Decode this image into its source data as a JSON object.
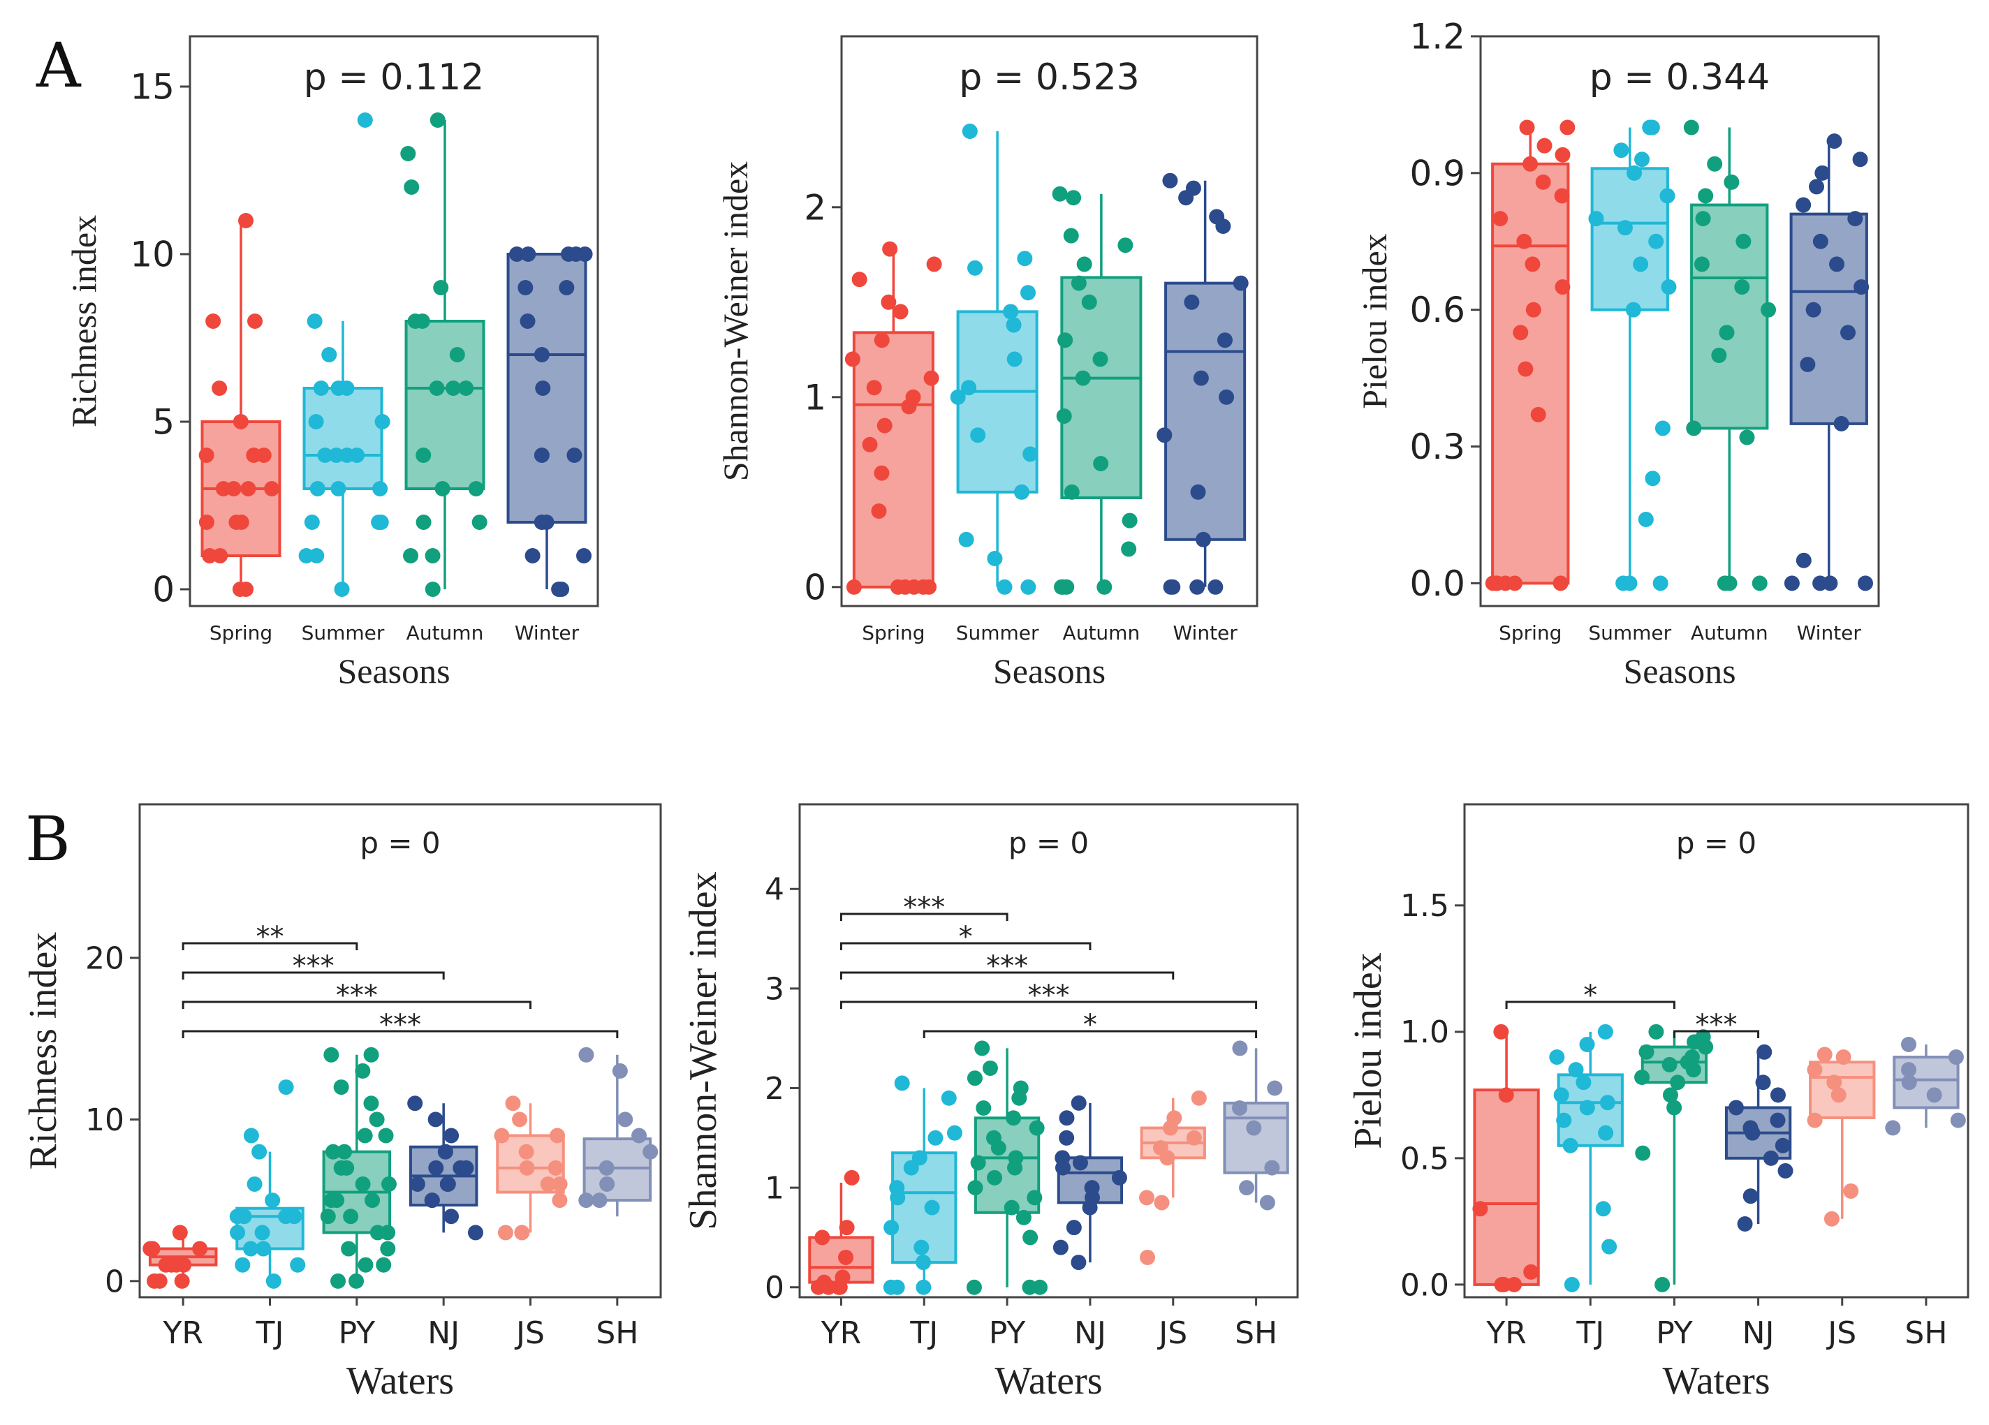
{
  "figure": {
    "panel_labels": [
      "A",
      "B"
    ],
    "colors": {
      "Spring": "#F0473C",
      "Summer": "#1FB8D6",
      "Autumn": "#11A07E",
      "Winter": "#2B4B8C",
      "YR": "#F0473C",
      "TJ": "#1FB8D6",
      "PY": "#11A07E",
      "NJ": "#2B4B8C",
      "JS": "#F6907E",
      "SH": "#8290B8"
    }
  },
  "chart_data": [
    {
      "type": "box",
      "panel": "A",
      "title": "p = 0.112",
      "xlabel": "Seasons",
      "ylabel": "Richness index",
      "ylim": [
        -0.5,
        16.5
      ],
      "yticks": [
        0,
        5,
        10,
        15
      ],
      "ytick_labels": [
        "0",
        "5",
        "10",
        "15"
      ],
      "categories": [
        "Spring",
        "Summer",
        "Autumn",
        "Winter"
      ],
      "boxes": [
        {
          "q1": 1,
          "median": 3,
          "q3": 5,
          "whisker_low": 0,
          "whisker_high": 11
        },
        {
          "q1": 3,
          "median": 4,
          "q3": 6,
          "whisker_low": 0,
          "whisker_high": 8
        },
        {
          "q1": 3,
          "median": 6,
          "q3": 8,
          "whisker_low": 0,
          "whisker_high": 14
        },
        {
          "q1": 2,
          "median": 7,
          "q3": 10,
          "whisker_low": 0,
          "whisker_high": 10
        }
      ],
      "points": [
        [
          0,
          0,
          1,
          1,
          2,
          2,
          2,
          3,
          3,
          3,
          3,
          4,
          4,
          4,
          5,
          6,
          8,
          8,
          11
        ],
        [
          0,
          1,
          1,
          2,
          2,
          2,
          3,
          3,
          3,
          4,
          4,
          4,
          4,
          5,
          5,
          6,
          6,
          6,
          7,
          8,
          14
        ],
        [
          0,
          1,
          1,
          2,
          2,
          3,
          3,
          4,
          6,
          6,
          6,
          7,
          8,
          8,
          9,
          12,
          13,
          14
        ],
        [
          0,
          0,
          1,
          1,
          2,
          2,
          4,
          4,
          6,
          7,
          8,
          9,
          9,
          10,
          10,
          10,
          10,
          10
        ]
      ],
      "significance": []
    },
    {
      "type": "box",
      "panel": "A",
      "title": "p = 0.523",
      "xlabel": "Seasons",
      "ylabel": "Shannon-Weiner index",
      "ylim": [
        -0.1,
        2.9
      ],
      "yticks": [
        0,
        1,
        2
      ],
      "ytick_labels": [
        "0",
        "1",
        "2"
      ],
      "categories": [
        "Spring",
        "Summer",
        "Autumn",
        "Winter"
      ],
      "boxes": [
        {
          "q1": 0,
          "median": 0.96,
          "q3": 1.34,
          "whisker_low": 0,
          "whisker_high": 1.78
        },
        {
          "q1": 0.5,
          "median": 1.03,
          "q3": 1.45,
          "whisker_low": 0,
          "whisker_high": 2.4
        },
        {
          "q1": 0.47,
          "median": 1.1,
          "q3": 1.63,
          "whisker_low": 0,
          "whisker_high": 2.07
        },
        {
          "q1": 0.25,
          "median": 1.24,
          "q3": 1.6,
          "whisker_low": 0,
          "whisker_high": 2.14
        }
      ],
      "points": [
        [
          0,
          0,
          0,
          0,
          0,
          0,
          0.4,
          0.6,
          0.75,
          0.85,
          0.95,
          1.0,
          1.05,
          1.1,
          1.2,
          1.3,
          1.45,
          1.5,
          1.62,
          1.7,
          1.78
        ],
        [
          0,
          0,
          0.15,
          0.25,
          0.5,
          0.7,
          0.8,
          1.0,
          1.05,
          1.2,
          1.38,
          1.45,
          1.55,
          1.68,
          1.73,
          2.4
        ],
        [
          0,
          0,
          0,
          0,
          0.2,
          0.35,
          0.5,
          0.65,
          0.9,
          1.1,
          1.2,
          1.3,
          1.5,
          1.6,
          1.7,
          1.8,
          1.85,
          2.05,
          2.07
        ],
        [
          0,
          0,
          0,
          0,
          0.25,
          0.5,
          0.8,
          1.0,
          1.1,
          1.3,
          1.5,
          1.6,
          1.9,
          1.95,
          2.05,
          2.1,
          2.14
        ]
      ],
      "significance": []
    },
    {
      "type": "box",
      "panel": "A",
      "title": "p = 0.344",
      "xlabel": "Seasons",
      "ylabel": "Pielou index",
      "ylim": [
        -0.05,
        1.2
      ],
      "yticks": [
        0,
        0.3,
        0.6,
        0.9,
        1.2
      ],
      "ytick_labels": [
        "0.0",
        "0.3",
        "0.6",
        "0.9",
        "1.2"
      ],
      "categories": [
        "Spring",
        "Summer",
        "Autumn",
        "Winter"
      ],
      "boxes": [
        {
          "q1": 0,
          "median": 0.74,
          "q3": 0.92,
          "whisker_low": 0,
          "whisker_high": 1.0
        },
        {
          "q1": 0.6,
          "median": 0.79,
          "q3": 0.91,
          "whisker_low": 0,
          "whisker_high": 1.0
        },
        {
          "q1": 0.34,
          "median": 0.67,
          "q3": 0.83,
          "whisker_low": 0,
          "whisker_high": 1.0
        },
        {
          "q1": 0.35,
          "median": 0.64,
          "q3": 0.81,
          "whisker_low": 0,
          "whisker_high": 0.97
        }
      ],
      "points": [
        [
          0,
          0,
          0,
          0,
          0,
          0,
          0.37,
          0.47,
          0.55,
          0.6,
          0.65,
          0.7,
          0.75,
          0.8,
          0.85,
          0.88,
          0.92,
          0.94,
          0.96,
          1.0,
          1.0
        ],
        [
          0,
          0,
          0,
          0.14,
          0.23,
          0.34,
          0.6,
          0.65,
          0.7,
          0.75,
          0.78,
          0.8,
          0.85,
          0.9,
          0.93,
          0.95,
          1.0,
          1.0
        ],
        [
          0,
          0,
          0,
          0.32,
          0.34,
          0.5,
          0.55,
          0.6,
          0.65,
          0.7,
          0.75,
          0.8,
          0.85,
          0.88,
          0.92,
          1.0
        ],
        [
          0,
          0,
          0,
          0,
          0.05,
          0.35,
          0.48,
          0.55,
          0.6,
          0.65,
          0.7,
          0.75,
          0.8,
          0.83,
          0.87,
          0.9,
          0.93,
          0.97
        ]
      ],
      "significance": []
    },
    {
      "type": "box",
      "panel": "B",
      "title": "p = 0",
      "xlabel": "Waters",
      "ylabel": "Richness index",
      "ylim": [
        -1,
        29.5
      ],
      "yticks": [
        0,
        10,
        20
      ],
      "ytick_labels": [
        "0",
        "10",
        "20"
      ],
      "categories": [
        "YR",
        "TJ",
        "PY",
        "NJ",
        "JS",
        "SH"
      ],
      "boxes": [
        {
          "q1": 1,
          "median": 1.5,
          "q3": 2,
          "whisker_low": 0,
          "whisker_high": 3
        },
        {
          "q1": 2,
          "median": 4,
          "q3": 4.5,
          "whisker_low": 0,
          "whisker_high": 8
        },
        {
          "q1": 3,
          "median": 5.5,
          "q3": 8,
          "whisker_low": 0,
          "whisker_high": 14
        },
        {
          "q1": 4.7,
          "median": 6.5,
          "q3": 8.3,
          "whisker_low": 3,
          "whisker_high": 11
        },
        {
          "q1": 5.5,
          "median": 7,
          "q3": 9,
          "whisker_low": 3,
          "whisker_high": 11
        },
        {
          "q1": 5,
          "median": 7,
          "q3": 8.8,
          "whisker_low": 4,
          "whisker_high": 14
        }
      ],
      "points": [
        [
          0,
          0,
          0,
          1,
          1,
          1,
          1,
          2,
          2,
          2,
          3
        ],
        [
          0,
          1,
          1,
          2,
          2,
          3,
          3,
          4,
          4,
          4,
          4,
          5,
          6,
          8,
          9,
          12
        ],
        [
          0,
          0,
          1,
          1,
          2,
          2,
          3,
          3,
          4,
          4,
          5,
          5,
          5,
          6,
          6,
          7,
          7,
          8,
          8,
          9,
          9,
          10,
          11,
          12,
          13,
          14,
          14
        ],
        [
          3,
          4,
          5,
          5,
          6,
          6,
          6,
          7,
          7,
          7,
          8,
          8,
          9,
          10,
          11
        ],
        [
          3,
          3,
          5,
          6,
          6,
          7,
          7,
          8,
          9,
          9,
          10,
          11
        ],
        [
          5,
          5,
          6,
          7,
          8,
          9,
          10,
          13,
          14
        ]
      ],
      "significance": [
        {
          "from": "YR",
          "to": "PY",
          "label": "**"
        },
        {
          "from": "YR",
          "to": "NJ",
          "label": "***"
        },
        {
          "from": "YR",
          "to": "JS",
          "label": "***"
        },
        {
          "from": "YR",
          "to": "SH",
          "label": "***"
        }
      ]
    },
    {
      "type": "box",
      "panel": "B",
      "title": "p = 0",
      "xlabel": "Waters",
      "ylabel": "Shannon-Weiner index",
      "ylim": [
        -0.1,
        4.85
      ],
      "yticks": [
        0,
        1,
        2,
        3,
        4
      ],
      "ytick_labels": [
        "0",
        "1",
        "2",
        "3",
        "4"
      ],
      "categories": [
        "YR",
        "TJ",
        "PY",
        "NJ",
        "JS",
        "SH"
      ],
      "boxes": [
        {
          "q1": 0.05,
          "median": 0.2,
          "q3": 0.5,
          "whisker_low": 0,
          "whisker_high": 1.05
        },
        {
          "q1": 0.25,
          "median": 0.95,
          "q3": 1.35,
          "whisker_low": 0,
          "whisker_high": 2.0
        },
        {
          "q1": 0.75,
          "median": 1.3,
          "q3": 1.7,
          "whisker_low": 0,
          "whisker_high": 2.4
        },
        {
          "q1": 0.85,
          "median": 1.15,
          "q3": 1.3,
          "whisker_low": 0.25,
          "whisker_high": 1.85
        },
        {
          "q1": 1.3,
          "median": 1.45,
          "q3": 1.6,
          "whisker_low": 0.9,
          "whisker_high": 1.9
        },
        {
          "q1": 1.15,
          "median": 1.7,
          "q3": 1.85,
          "whisker_low": 0.85,
          "whisker_high": 2.4
        }
      ],
      "points": [
        [
          0,
          0,
          0,
          0,
          0.05,
          0.1,
          0.3,
          0.5,
          0.6,
          1.1
        ],
        [
          0,
          0,
          0,
          0.25,
          0.4,
          0.6,
          0.8,
          0.9,
          1.0,
          1.2,
          1.3,
          1.5,
          1.55,
          1.9,
          2.05
        ],
        [
          0,
          0,
          0,
          0.5,
          0.7,
          0.8,
          0.9,
          1.0,
          1.1,
          1.2,
          1.25,
          1.3,
          1.4,
          1.5,
          1.6,
          1.7,
          1.8,
          1.9,
          2.0,
          2.1,
          2.2,
          2.4
        ],
        [
          0.25,
          0.4,
          0.6,
          0.8,
          0.9,
          1.0,
          1.1,
          1.2,
          1.25,
          1.3,
          1.5,
          1.7,
          1.85
        ],
        [
          0.3,
          0.85,
          0.9,
          1.3,
          1.4,
          1.5,
          1.6,
          1.7,
          1.9
        ],
        [
          0.85,
          1.0,
          1.2,
          1.6,
          1.8,
          2.0,
          2.4
        ]
      ],
      "significance": [
        {
          "from": "YR",
          "to": "PY",
          "label": "***"
        },
        {
          "from": "YR",
          "to": "NJ",
          "label": "*"
        },
        {
          "from": "YR",
          "to": "JS",
          "label": "***"
        },
        {
          "from": "YR",
          "to": "SH",
          "label": "***"
        },
        {
          "from": "TJ",
          "to": "SH",
          "label": "*"
        }
      ]
    },
    {
      "type": "box",
      "panel": "B",
      "title": "p = 0",
      "xlabel": "Waters",
      "ylabel": "Pielou index",
      "ylim": [
        -0.05,
        1.9
      ],
      "yticks": [
        0,
        0.5,
        1.0,
        1.5
      ],
      "ytick_labels": [
        "0.0",
        "0.5",
        "1.0",
        "1.5"
      ],
      "categories": [
        "YR",
        "TJ",
        "PY",
        "NJ",
        "JS",
        "SH"
      ],
      "boxes": [
        {
          "q1": 0,
          "median": 0.32,
          "q3": 0.77,
          "whisker_low": 0,
          "whisker_high": 1.0
        },
        {
          "q1": 0.55,
          "median": 0.72,
          "q3": 0.83,
          "whisker_low": 0,
          "whisker_high": 1.0
        },
        {
          "q1": 0.8,
          "median": 0.88,
          "q3": 0.94,
          "whisker_low": 0,
          "whisker_high": 1.0
        },
        {
          "q1": 0.5,
          "median": 0.6,
          "q3": 0.7,
          "whisker_low": 0.24,
          "whisker_high": 0.92
        },
        {
          "q1": 0.66,
          "median": 0.82,
          "q3": 0.88,
          "whisker_low": 0.26,
          "whisker_high": 0.91
        },
        {
          "q1": 0.7,
          "median": 0.81,
          "q3": 0.9,
          "whisker_low": 0.62,
          "whisker_high": 0.95
        }
      ],
      "points": [
        [
          0,
          0,
          0,
          0.05,
          0.3,
          0.75,
          1.0
        ],
        [
          0,
          0.15,
          0.3,
          0.55,
          0.6,
          0.65,
          0.7,
          0.72,
          0.75,
          0.8,
          0.85,
          0.9,
          0.95,
          1.0
        ],
        [
          0,
          0.52,
          0.7,
          0.75,
          0.8,
          0.82,
          0.85,
          0.87,
          0.88,
          0.9,
          0.92,
          0.94,
          0.96,
          0.98,
          1.0
        ],
        [
          0.24,
          0.35,
          0.45,
          0.5,
          0.55,
          0.6,
          0.62,
          0.65,
          0.7,
          0.75,
          0.8,
          0.92
        ],
        [
          0.26,
          0.37,
          0.65,
          0.75,
          0.8,
          0.85,
          0.9,
          0.91
        ],
        [
          0.62,
          0.65,
          0.75,
          0.8,
          0.85,
          0.9,
          0.95
        ]
      ],
      "significance": [
        {
          "from": "YR",
          "to": "PY",
          "label": "*"
        },
        {
          "from": "PY",
          "to": "NJ",
          "label": "***"
        }
      ]
    }
  ]
}
